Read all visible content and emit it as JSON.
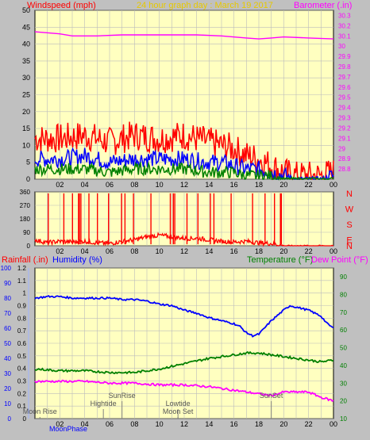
{
  "header": {
    "left_title": "Windspeed (mph)",
    "center_title": "24 hour graph day : March 19 2017",
    "right_title": "Barometer (.in)"
  },
  "colors": {
    "background": "#c0c0c0",
    "plot_bg": "#ffffc0",
    "grid": "#bcbcbc",
    "red": "#ff0000",
    "blue": "#0000ff",
    "green": "#008000",
    "magenta": "#ff00ff",
    "gold": "#e6c800",
    "tick_text": "#000000",
    "cyan_axis": "#9fb4ff"
  },
  "chart_data": [
    {
      "type": "line",
      "panel": "wind-barometer",
      "x_tick_labels": [
        "02",
        "04",
        "06",
        "08",
        "10",
        "12",
        "14",
        "16",
        "18",
        "20",
        "22",
        "00"
      ],
      "left_axis": {
        "label": "Windspeed (mph)",
        "ylim": [
          0,
          50
        ],
        "ticks": [
          "0",
          "5",
          "10",
          "15",
          "20",
          "25",
          "30",
          "35",
          "40",
          "45",
          "50"
        ]
      },
      "right_axis": {
        "label": "Barometer (.in)",
        "ylim": [
          28.7,
          30.35
        ],
        "ticks": [
          "28.8",
          "28.9",
          "29",
          "29.1",
          "29.2",
          "29.3",
          "29.4",
          "29.5",
          "29.6",
          "29.7",
          "29.8",
          "29.9",
          "30",
          "30.1",
          "30.2",
          "30.3"
        ]
      },
      "series": [
        {
          "name": "Barometer (.in)",
          "axis": "right",
          "color": "magenta",
          "x": [
            0,
            2,
            3,
            5,
            7,
            9,
            11,
            13,
            15,
            17,
            18,
            19,
            20,
            22,
            24
          ],
          "values": [
            30.14,
            30.12,
            30.1,
            30.1,
            30.11,
            30.11,
            30.11,
            30.11,
            30.1,
            30.08,
            30.07,
            30.08,
            30.09,
            30.08,
            30.07
          ]
        },
        {
          "axis": "left",
          "color": "red",
          "x": [
            0,
            2,
            4,
            6,
            8,
            10,
            12,
            14,
            15,
            16,
            17,
            18,
            19,
            20,
            21,
            22,
            23,
            24
          ],
          "values": [
            12,
            12,
            13,
            11,
            13,
            12,
            13,
            11,
            10,
            9,
            7,
            6,
            4,
            2,
            1,
            1,
            1,
            2
          ]
        },
        {
          "axis": "left",
          "color": "blue",
          "x": [
            0,
            2,
            4,
            6,
            8,
            10,
            12,
            14,
            15,
            16,
            17,
            18,
            19,
            20,
            21,
            22,
            23,
            24
          ],
          "values": [
            6,
            6,
            7,
            5,
            6,
            6,
            6,
            5,
            5,
            4,
            3,
            3,
            2,
            1,
            0,
            0,
            0,
            1
          ]
        },
        {
          "axis": "left",
          "color": "green",
          "x": [
            0,
            2,
            4,
            6,
            8,
            10,
            12,
            14,
            15,
            16,
            17,
            18,
            19,
            20,
            21,
            22,
            23,
            24
          ],
          "values": [
            3,
            3,
            3,
            2,
            3,
            3,
            3,
            2,
            2,
            2,
            1,
            1,
            1,
            0,
            0,
            0,
            0,
            0
          ]
        }
      ]
    },
    {
      "type": "line",
      "panel": "wind-direction",
      "x_tick_labels": [
        "02",
        "04",
        "06",
        "08",
        "10",
        "12",
        "14",
        "16",
        "18",
        "20",
        "22",
        "00"
      ],
      "left_axis": {
        "ylim": [
          0,
          360
        ],
        "ticks": [
          "0",
          "90",
          "180",
          "270",
          "360"
        ]
      },
      "compass_labels": [
        "N",
        "W",
        "S",
        "E",
        "N"
      ],
      "series": [
        {
          "axis": "left",
          "color": "red",
          "x": [
            0,
            1,
            2,
            3,
            4,
            5,
            6,
            7,
            8,
            9,
            10,
            11,
            12,
            13,
            14,
            15,
            16,
            17,
            18,
            19,
            20,
            24
          ],
          "values": [
            40,
            20,
            30,
            25,
            30,
            20,
            15,
            30,
            40,
            60,
            70,
            60,
            50,
            50,
            40,
            30,
            25,
            30,
            20,
            15,
            0,
            0
          ]
        }
      ]
    },
    {
      "type": "line",
      "panel": "rain-humidity-temperature",
      "x_tick_labels": [
        "02",
        "04",
        "06",
        "08",
        "10",
        "12",
        "14",
        "16",
        "18",
        "20",
        "22",
        "00"
      ],
      "rain_axis": {
        "label": "Rainfall (.in)",
        "ylim": [
          0,
          1.2
        ],
        "ticks": [
          "0",
          "0.1",
          "0.2",
          "0.3",
          "0.4",
          "0.5",
          "0.6",
          "0.7",
          "0.8",
          "0.9",
          "1",
          "1.1",
          "1.2"
        ]
      },
      "humidity_axis": {
        "label": "Humidity (%)",
        "ylim": [
          0,
          100
        ],
        "ticks": [
          "0",
          "10",
          "20",
          "30",
          "40",
          "50",
          "60",
          "70",
          "80",
          "90",
          "100"
        ]
      },
      "temp_axis": {
        "label": "Temperature (°F)",
        "label2": "Dew Point (°F)",
        "ylim": [
          10,
          95
        ],
        "ticks": [
          "10",
          "20",
          "30",
          "40",
          "50",
          "60",
          "70",
          "80",
          "90"
        ]
      },
      "events": [
        {
          "label": "Moon Rise",
          "x": 0.4,
          "row": 1
        },
        {
          "label": "Hightide",
          "x": 5.5,
          "row": 2
        },
        {
          "label": "SunRise",
          "x": 7.0,
          "row": 3
        },
        {
          "label": "Lowtide",
          "x": 11.5,
          "row": 2
        },
        {
          "label": "Moon Set",
          "x": 11.5,
          "row": 1
        },
        {
          "label": "SunSet",
          "x": 19.0,
          "row": 3
        }
      ],
      "bottom_label": "MoonPhase",
      "series": [
        {
          "name": "Humidity (%)",
          "axis": "humidity",
          "color": "blue",
          "x": [
            0,
            1,
            2,
            3,
            4,
            5,
            6,
            7,
            8,
            9,
            10,
            11,
            12,
            13,
            14,
            15,
            16,
            16.5,
            17,
            17.5,
            18,
            19,
            20,
            20.5,
            21,
            22,
            23,
            23.5,
            24
          ],
          "values": [
            80,
            81,
            81,
            80,
            80,
            80,
            80,
            79,
            79,
            78,
            76,
            75,
            72,
            70,
            67,
            65,
            63,
            61,
            57,
            55,
            56,
            65,
            72,
            75,
            74,
            72,
            68,
            63,
            60
          ]
        },
        {
          "name": "Temperature (°F)",
          "axis": "temp",
          "color": "green",
          "x": [
            0,
            2,
            4,
            6,
            8,
            10,
            12,
            14,
            16,
            17,
            18,
            20,
            22,
            23,
            24
          ],
          "values": [
            38,
            37,
            37,
            36,
            36,
            38,
            41,
            44,
            46,
            47,
            47,
            45,
            43,
            42,
            43
          ]
        },
        {
          "name": "Dew Point (°F)",
          "axis": "temp",
          "color": "magenta",
          "x": [
            0,
            2,
            4,
            6,
            8,
            10,
            12,
            14,
            16,
            17,
            18,
            19,
            20,
            22,
            23,
            24
          ],
          "values": [
            31,
            31,
            31,
            30,
            30,
            29,
            29,
            28,
            26,
            25,
            24,
            23,
            25,
            25,
            22,
            20
          ]
        }
      ]
    }
  ]
}
